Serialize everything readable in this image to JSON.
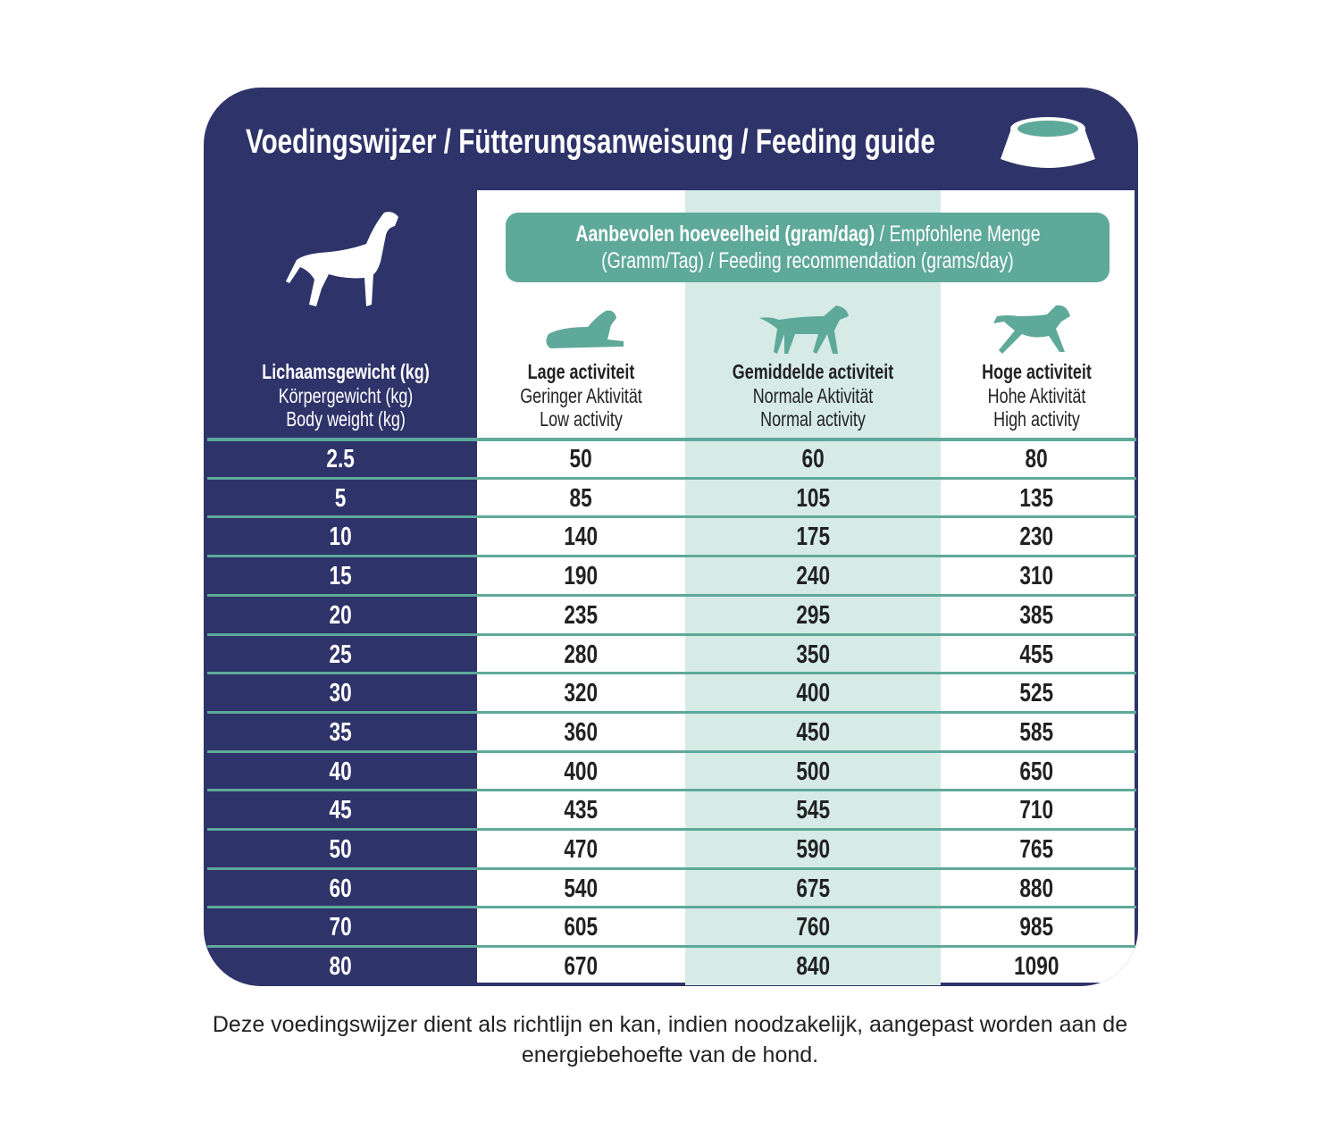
{
  "title": "Voedingswijzer / Fütterungsanweisung / Feeding guide",
  "banner": {
    "bold": "Aanbevolen hoeveelheid (gram/dag)",
    "line1_rest": " / Empfohlene Menge",
    "line2": "(Gramm/Tag) / Feeding recommendation (grams/day)"
  },
  "columns": [
    {
      "nl": "Lichaamsgewicht (kg)",
      "de": "Körpergewicht (kg)",
      "en": "Body weight (kg)"
    },
    {
      "nl": "Lage activiteit",
      "de": "Geringer Aktivität",
      "en": "Low activity"
    },
    {
      "nl": "Gemiddelde activiteit",
      "de": "Normale Aktivität",
      "en": "Normal activity"
    },
    {
      "nl": "Hoge activiteit",
      "de": "Hohe Aktivität",
      "en": "High activity"
    }
  ],
  "rows": [
    [
      "2.5",
      "50",
      "60",
      "80"
    ],
    [
      "5",
      "85",
      "105",
      "135"
    ],
    [
      "10",
      "140",
      "175",
      "230"
    ],
    [
      "15",
      "190",
      "240",
      "310"
    ],
    [
      "20",
      "235",
      "295",
      "385"
    ],
    [
      "25",
      "280",
      "350",
      "455"
    ],
    [
      "30",
      "320",
      "400",
      "525"
    ],
    [
      "35",
      "360",
      "450",
      "585"
    ],
    [
      "40",
      "400",
      "500",
      "650"
    ],
    [
      "45",
      "435",
      "545",
      "710"
    ],
    [
      "50",
      "470",
      "590",
      "765"
    ],
    [
      "60",
      "540",
      "675",
      "880"
    ],
    [
      "70",
      "605",
      "760",
      "985"
    ],
    [
      "80",
      "670",
      "840",
      "1090"
    ]
  ],
  "footer": {
    "line1": "Deze voedingswijzer dient als richtlijn en kan, indien noodzakelijk, aangepast worden aan de",
    "line2": "energiebehoefte van de hond."
  },
  "colors": {
    "navy": "#2e3369",
    "teal": "#5fa99a",
    "light_teal": "#d6ebe6"
  }
}
